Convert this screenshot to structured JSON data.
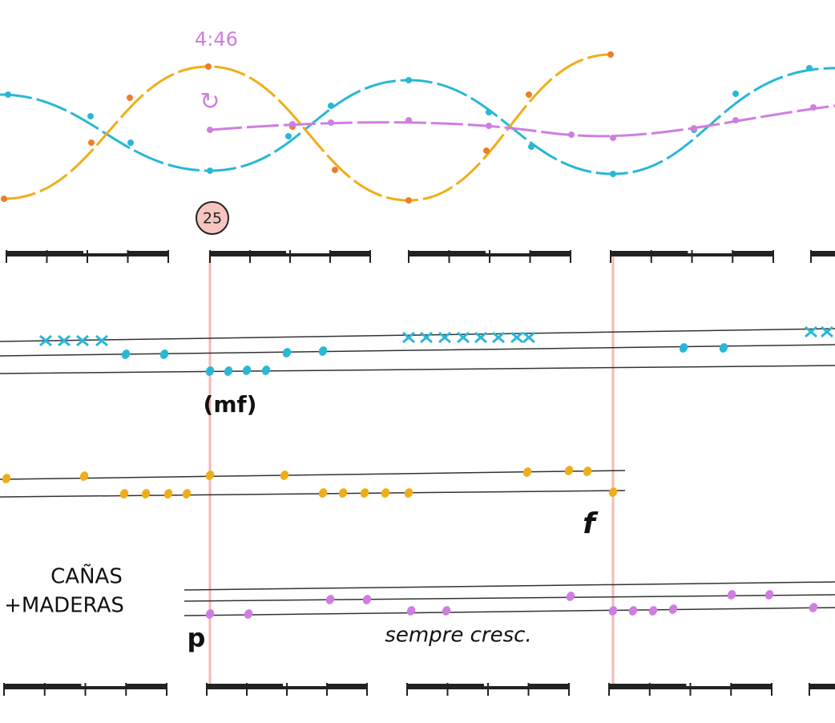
{
  "header": {
    "time_marking": "4:46",
    "repeat_symbol": "↻",
    "rehearsal_mark": "25"
  },
  "staff_1": {
    "dynamic": "(mf)"
  },
  "staff_2": {
    "dynamic": "f"
  },
  "staff_3": {
    "label_line_1": "CAÑAS",
    "label_line_2": "+MADERAS",
    "dynamic": "p",
    "expression": "sempre cresc."
  }
}
